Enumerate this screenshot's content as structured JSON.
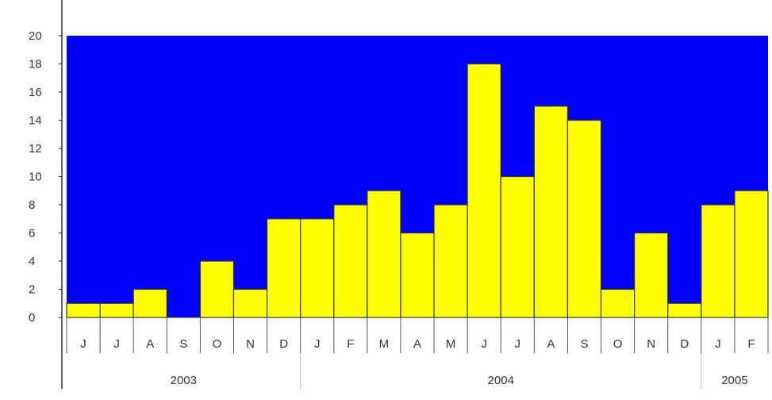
{
  "chart_data": {
    "type": "bar",
    "categories": [
      "J",
      "J",
      "A",
      "S",
      "O",
      "N",
      "D",
      "J",
      "F",
      "M",
      "A",
      "M",
      "J",
      "J",
      "A",
      "S",
      "O",
      "N",
      "D",
      "J",
      "F"
    ],
    "values": [
      1,
      1,
      2,
      0,
      4,
      2,
      7,
      7,
      8,
      9,
      6,
      8,
      18,
      10,
      15,
      14,
      2,
      6,
      1,
      8,
      9
    ],
    "year_groups": [
      {
        "label": "2003",
        "count": 7
      },
      {
        "label": "2004",
        "count": 12
      },
      {
        "label": "2005",
        "count": 2
      }
    ],
    "y_ticks": [
      "0",
      "2",
      "4",
      "6",
      "8",
      "10",
      "12",
      "14",
      "16",
      "18",
      "20"
    ],
    "ylim": [
      0,
      20
    ],
    "title": "",
    "xlabel": "",
    "ylabel": "",
    "colors": {
      "plot_background": "#0000ff",
      "bar_fill": "#ffff00",
      "bar_stroke": "#333333",
      "axis": "#333333"
    }
  }
}
